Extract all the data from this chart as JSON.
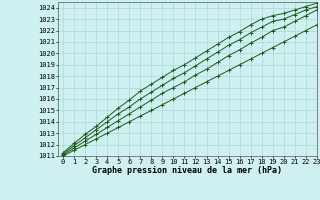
{
  "xlabel": "Graphe pression niveau de la mer (hPa)",
  "xlim": [
    -0.5,
    23
  ],
  "ylim": [
    1011,
    1024.5
  ],
  "yticks": [
    1011,
    1012,
    1013,
    1014,
    1015,
    1016,
    1017,
    1018,
    1019,
    1020,
    1021,
    1022,
    1023,
    1024
  ],
  "xticks": [
    0,
    1,
    2,
    3,
    4,
    5,
    6,
    7,
    8,
    9,
    10,
    11,
    12,
    13,
    14,
    15,
    16,
    17,
    18,
    19,
    20,
    21,
    22,
    23
  ],
  "background_color": "#cff0f0",
  "grid_color": "#aad8d8",
  "line_color": "#1a5c1a",
  "series": [
    [
      1011.0,
      1011.5,
      1012.0,
      1012.5,
      1013.0,
      1013.5,
      1014.0,
      1014.5,
      1015.0,
      1015.5,
      1016.0,
      1016.5,
      1017.0,
      1017.5,
      1018.0,
      1018.5,
      1019.0,
      1019.5,
      1020.0,
      1020.5,
      1021.0,
      1021.5,
      1022.0,
      1022.5
    ],
    [
      1011.1,
      1011.7,
      1012.3,
      1012.9,
      1013.5,
      1014.1,
      1014.7,
      1015.3,
      1015.9,
      1016.5,
      1017.0,
      1017.5,
      1018.1,
      1018.6,
      1019.2,
      1019.8,
      1020.3,
      1020.9,
      1021.4,
      1022.0,
      1022.3,
      1022.8,
      1023.3,
      1023.8
    ],
    [
      1011.2,
      1011.9,
      1012.6,
      1013.3,
      1014.0,
      1014.7,
      1015.3,
      1016.0,
      1016.6,
      1017.2,
      1017.8,
      1018.3,
      1018.9,
      1019.5,
      1020.1,
      1020.7,
      1021.2,
      1021.8,
      1022.3,
      1022.8,
      1023.0,
      1023.4,
      1023.8,
      1024.1
    ],
    [
      1011.3,
      1012.1,
      1012.9,
      1013.6,
      1014.4,
      1015.2,
      1015.9,
      1016.7,
      1017.3,
      1017.9,
      1018.5,
      1019.0,
      1019.6,
      1020.2,
      1020.8,
      1021.4,
      1021.9,
      1022.5,
      1023.0,
      1023.3,
      1023.5,
      1023.8,
      1024.1,
      1024.4
    ]
  ],
  "marker": "+",
  "markersize": 3,
  "linewidth": 0.7,
  "fontsize_ticks": 5.0,
  "fontsize_xlabel": 6.0
}
